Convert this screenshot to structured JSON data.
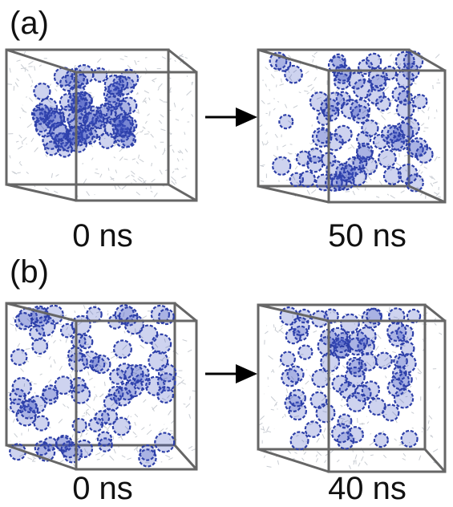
{
  "panels": [
    {
      "label": "(a)",
      "snapshots": [
        {
          "time": "0 ns"
        },
        {
          "time": "50 ns"
        }
      ]
    },
    {
      "label": "(b)",
      "snapshots": [
        {
          "time": "0 ns"
        },
        {
          "time": "40 ns"
        }
      ]
    }
  ]
}
